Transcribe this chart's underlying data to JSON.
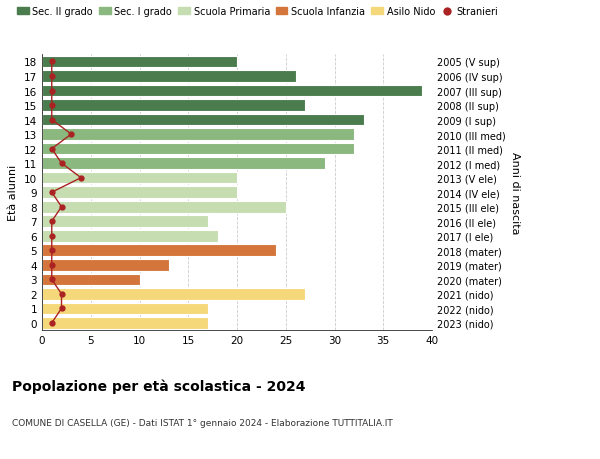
{
  "ages": [
    18,
    17,
    16,
    15,
    14,
    13,
    12,
    11,
    10,
    9,
    8,
    7,
    6,
    5,
    4,
    3,
    2,
    1,
    0
  ],
  "values": [
    20,
    26,
    39,
    27,
    33,
    32,
    32,
    29,
    20,
    20,
    25,
    17,
    18,
    24,
    13,
    10,
    27,
    17,
    17
  ],
  "stranieri": [
    1,
    1,
    1,
    1,
    1,
    3,
    1,
    2,
    4,
    1,
    2,
    1,
    1,
    1,
    1,
    1,
    2,
    2,
    1
  ],
  "right_labels": [
    "2005 (V sup)",
    "2006 (IV sup)",
    "2007 (III sup)",
    "2008 (II sup)",
    "2009 (I sup)",
    "2010 (III med)",
    "2011 (II med)",
    "2012 (I med)",
    "2013 (V ele)",
    "2014 (IV ele)",
    "2015 (III ele)",
    "2016 (II ele)",
    "2017 (I ele)",
    "2018 (mater)",
    "2019 (mater)",
    "2020 (mater)",
    "2021 (nido)",
    "2022 (nido)",
    "2023 (nido)"
  ],
  "bar_colors": {
    "sec2": "#4a7c4e",
    "sec1": "#8ab87e",
    "primaria": "#c5ddb0",
    "infanzia": "#d4763b",
    "nido": "#f5d87a"
  },
  "color_map": [
    "sec2",
    "sec2",
    "sec2",
    "sec2",
    "sec2",
    "sec1",
    "sec1",
    "sec1",
    "primaria",
    "primaria",
    "primaria",
    "primaria",
    "primaria",
    "infanzia",
    "infanzia",
    "infanzia",
    "nido",
    "nido",
    "nido"
  ],
  "stranieri_color": "#aa2222",
  "line_color": "#aa2222",
  "title": "Popolazione per età scolastica - 2024",
  "subtitle": "COMUNE DI CASELLA (GE) - Dati ISTAT 1° gennaio 2024 - Elaborazione TUTTITALIA.IT",
  "ylabel": "Età alunni",
  "right_ylabel": "Anni di nascita",
  "xlim": [
    0,
    40
  ],
  "xticks": [
    0,
    5,
    10,
    15,
    20,
    25,
    30,
    35,
    40
  ],
  "legend_entries": [
    {
      "label": "Sec. II grado",
      "color": "#4a7c4e"
    },
    {
      "label": "Sec. I grado",
      "color": "#8ab87e"
    },
    {
      "label": "Scuola Primaria",
      "color": "#c5ddb0"
    },
    {
      "label": "Scuola Infanzia",
      "color": "#d4763b"
    },
    {
      "label": "Asilo Nido",
      "color": "#f5d87a"
    },
    {
      "label": "Stranieri",
      "color": "#aa2222"
    }
  ],
  "bg_color": "#ffffff",
  "grid_color": "#cccccc"
}
